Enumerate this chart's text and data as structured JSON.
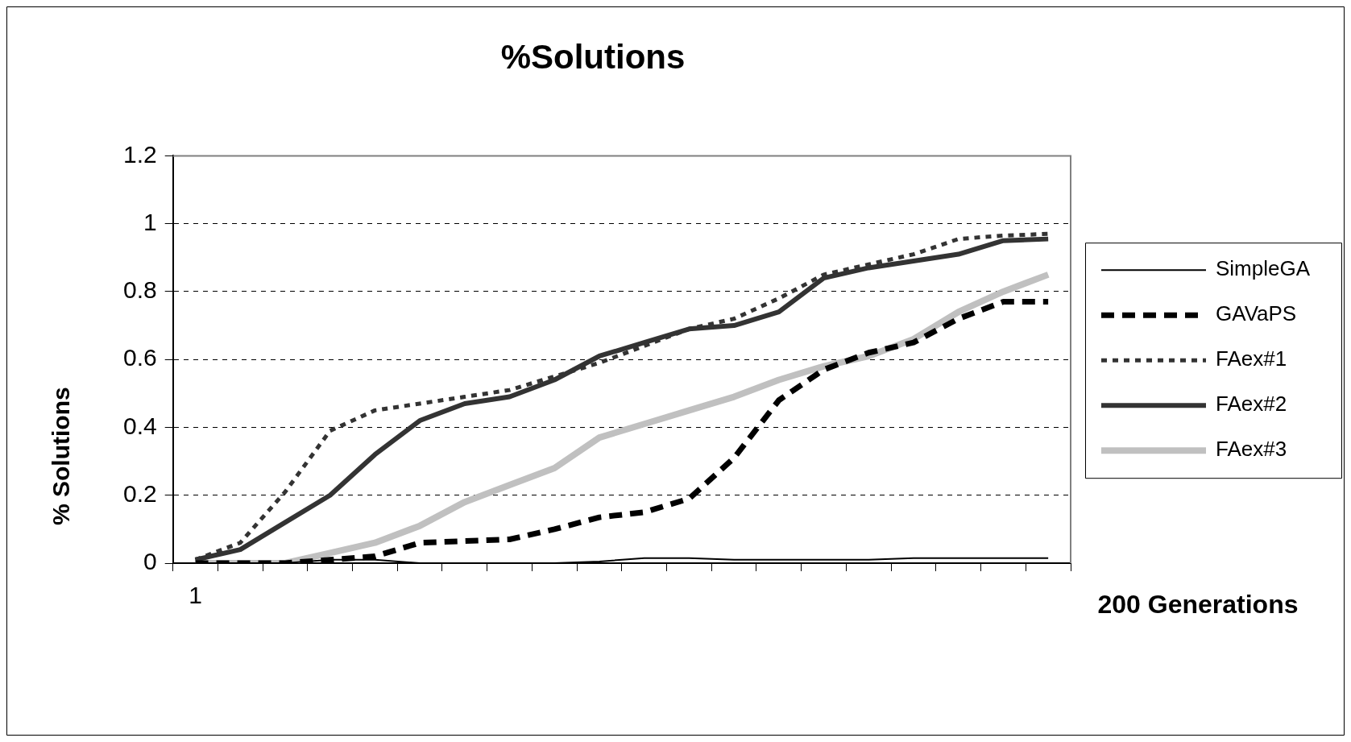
{
  "chart_data": {
    "type": "line",
    "title": "%Solutions",
    "xlabel": "200 Generations",
    "ylabel": "% Solutions",
    "categories": [
      "1",
      null,
      null,
      null,
      null,
      null,
      null,
      null,
      null,
      null,
      null,
      null,
      null,
      null,
      null,
      null,
      null,
      null,
      null,
      null
    ],
    "ylim": [
      0,
      1.2
    ],
    "yticks": [
      0,
      0.2,
      0.4,
      0.6,
      0.8,
      1,
      1.2
    ],
    "grid": "y",
    "legend": "right",
    "series": [
      {
        "name": "SimpleGA",
        "color": "#000000",
        "line_style": "solid",
        "values": [
          0,
          0,
          0,
          0.01,
          0.01,
          0,
          0,
          0,
          0,
          0.005,
          0.015,
          0.015,
          0.01,
          0.01,
          0.01,
          0.01,
          0.015,
          0.015,
          0.015,
          0.015
        ]
      },
      {
        "name": "GAVaPS",
        "color": "#000000",
        "line_style": "dashed",
        "values": [
          0,
          0,
          0,
          0.01,
          0.02,
          0.06,
          0.065,
          0.07,
          0.1,
          0.135,
          0.15,
          0.19,
          0.31,
          0.48,
          0.57,
          0.62,
          0.65,
          0.72,
          0.77,
          0.77
        ]
      },
      {
        "name": "FAex#1",
        "color": "#333333",
        "line_style": "dotted",
        "values": [
          0.01,
          0.06,
          0.21,
          0.39,
          0.45,
          0.47,
          0.49,
          0.51,
          0.55,
          0.59,
          0.64,
          0.69,
          0.72,
          0.78,
          0.85,
          0.88,
          0.91,
          0.955,
          0.965,
          0.97
        ]
      },
      {
        "name": "FAex#2",
        "color": "#333333",
        "line_style": "solid",
        "values": [
          0.01,
          0.04,
          0.12,
          0.2,
          0.32,
          0.42,
          0.47,
          0.49,
          0.54,
          0.61,
          0.65,
          0.69,
          0.7,
          0.74,
          0.84,
          0.87,
          0.89,
          0.91,
          0.95,
          0.955
        ]
      },
      {
        "name": "FAex#3",
        "color": "#c0c0c0",
        "line_style": "solid",
        "values": [
          0,
          0,
          0,
          0.03,
          0.06,
          0.11,
          0.18,
          0.23,
          0.28,
          0.37,
          0.41,
          0.45,
          0.49,
          0.54,
          0.58,
          0.61,
          0.66,
          0.74,
          0.8,
          0.85
        ]
      }
    ]
  }
}
